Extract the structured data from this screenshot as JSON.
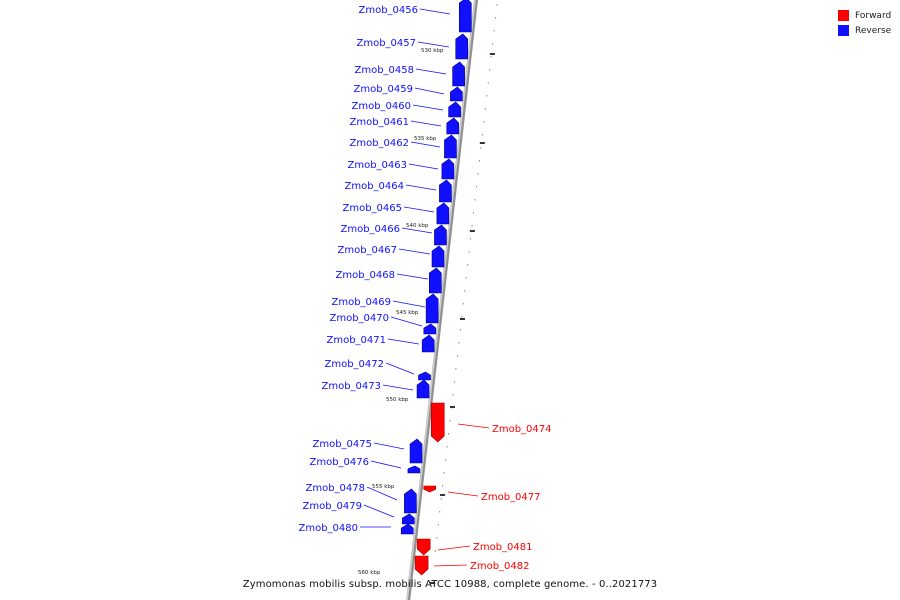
{
  "legend": {
    "forward": {
      "label": "Forward",
      "color": "#ff0000"
    },
    "reverse": {
      "label": "Reverse",
      "color": "#1010ff"
    }
  },
  "caption": "Zymomonas mobilis subsp. mobilis ATCC 10988, complete genome. - 0..2021773",
  "scale_ticks": [
    "530 kbp",
    "535 kbp",
    "540 kbp",
    "545 kbp",
    "550 kbp",
    "555 kbp",
    "560 kbp"
  ],
  "genes": [
    {
      "name": "Zmob_0456",
      "strand": "reverse"
    },
    {
      "name": "Zmob_0457",
      "strand": "reverse"
    },
    {
      "name": "Zmob_0458",
      "strand": "reverse"
    },
    {
      "name": "Zmob_0459",
      "strand": "reverse"
    },
    {
      "name": "Zmob_0460",
      "strand": "reverse"
    },
    {
      "name": "Zmob_0461",
      "strand": "reverse"
    },
    {
      "name": "Zmob_0462",
      "strand": "reverse"
    },
    {
      "name": "Zmob_0463",
      "strand": "reverse"
    },
    {
      "name": "Zmob_0464",
      "strand": "reverse"
    },
    {
      "name": "Zmob_0465",
      "strand": "reverse"
    },
    {
      "name": "Zmob_0466",
      "strand": "reverse"
    },
    {
      "name": "Zmob_0467",
      "strand": "reverse"
    },
    {
      "name": "Zmob_0468",
      "strand": "reverse"
    },
    {
      "name": "Zmob_0469",
      "strand": "reverse"
    },
    {
      "name": "Zmob_0470",
      "strand": "reverse"
    },
    {
      "name": "Zmob_0471",
      "strand": "reverse"
    },
    {
      "name": "Zmob_0472",
      "strand": "reverse"
    },
    {
      "name": "Zmob_0473",
      "strand": "reverse"
    },
    {
      "name": "Zmob_0474",
      "strand": "forward"
    },
    {
      "name": "Zmob_0475",
      "strand": "reverse"
    },
    {
      "name": "Zmob_0476",
      "strand": "reverse"
    },
    {
      "name": "Zmob_0477",
      "strand": "forward"
    },
    {
      "name": "Zmob_0478",
      "strand": "reverse"
    },
    {
      "name": "Zmob_0479",
      "strand": "reverse"
    },
    {
      "name": "Zmob_0480",
      "strand": "reverse"
    },
    {
      "name": "Zmob_0481",
      "strand": "forward"
    },
    {
      "name": "Zmob_0482",
      "strand": "forward"
    }
  ]
}
